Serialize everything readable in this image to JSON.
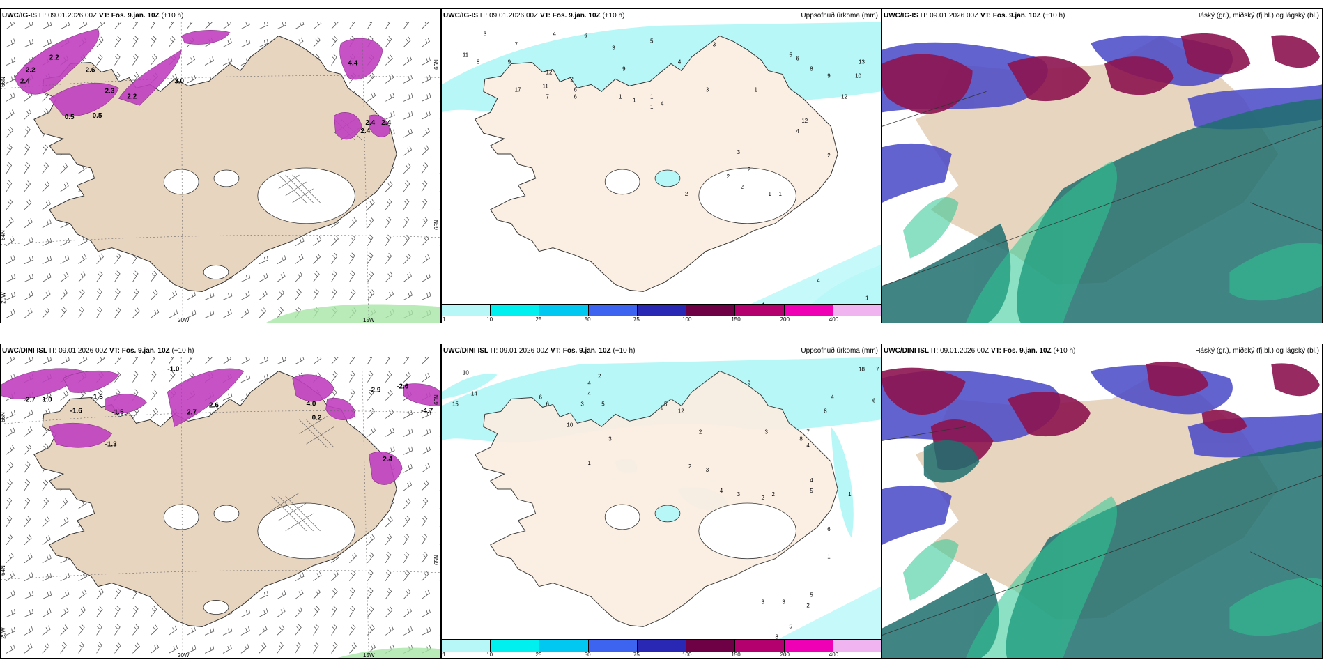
{
  "rows": [
    {
      "model": "UWC/IG-IS",
      "init_label": "IT:",
      "init": "09.01.2026 00Z",
      "valid_label": "VT:",
      "valid": "Fös. 9.jan. 10Z",
      "lead": "(+10 h)"
    },
    {
      "model": "UWC/DINI ISL",
      "init_label": "IT:",
      "init": "09.01.2026 00Z",
      "valid_label": "VT:",
      "valid": "Fös. 9.jan. 10Z",
      "lead": "(+10 h)"
    }
  ],
  "precip_panel_title": "Uppsöfnuð úrkoma (mm)",
  "cloud_panel_title": "Háský (gr.), miðský (fj.bl.) og lágský (bl.)",
  "grid_labels": {
    "lon_20": "20W",
    "lon_15": "15W",
    "lat_66": "66N",
    "lat_64": "64N",
    "lat_65": "65N",
    "lon_25": "25W"
  },
  "colorbar": {
    "ticks": [
      "1",
      "10",
      "25",
      "50",
      "75",
      "100",
      "150",
      "200",
      "400"
    ],
    "colors": [
      "#b8f7f7",
      "#00f0f0",
      "#00c8f0",
      "#3c64f0",
      "#2828b4",
      "#6e0046",
      "#b4006e",
      "#f000b4",
      "#f0b4f0"
    ]
  },
  "temp_labels_top": [
    "2.2",
    "2.2",
    "2.4",
    "2.6",
    "2.3",
    "3.0",
    "2.2",
    "0.5",
    "0.5",
    "4.4",
    "2.4",
    "2.4",
    "2.4"
  ],
  "temp_labels_bottom": [
    "2.7",
    "1.0",
    "-1.5",
    "-1.0",
    "-1.5",
    "2.7",
    "2.6",
    "4.0",
    "-2.9",
    "-2.6",
    "-4.7",
    "-1.6",
    "-1.3",
    "0.2",
    "2.4"
  ],
  "precip_values_top": [
    "3",
    "7",
    "4",
    "6",
    "3",
    "5",
    "3",
    "4",
    "11",
    "8",
    "9",
    "17",
    "11",
    "7",
    "12",
    "2",
    "6",
    "6",
    "9",
    "1",
    "1",
    "1",
    "1",
    "4",
    "3",
    "1",
    "5",
    "6",
    "8",
    "9",
    "13",
    "10",
    "12",
    "4",
    "12",
    "2",
    "3",
    "2",
    "2",
    "2",
    "1",
    "1",
    "2",
    "4",
    "4",
    "1"
  ],
  "precip_values_bottom": [
    "10",
    "14",
    "15",
    "4",
    "4",
    "2",
    "3",
    "5",
    "5",
    "9",
    "12",
    "6",
    "6",
    "10",
    "3",
    "7",
    "9",
    "18",
    "6",
    "4",
    "8",
    "2",
    "3",
    "8",
    "7",
    "4",
    "4",
    "5",
    "1",
    "2",
    "3",
    "4",
    "3",
    "2",
    "2",
    "6",
    "1",
    "1",
    "5",
    "2",
    "3",
    "3",
    "8",
    "5"
  ]
}
